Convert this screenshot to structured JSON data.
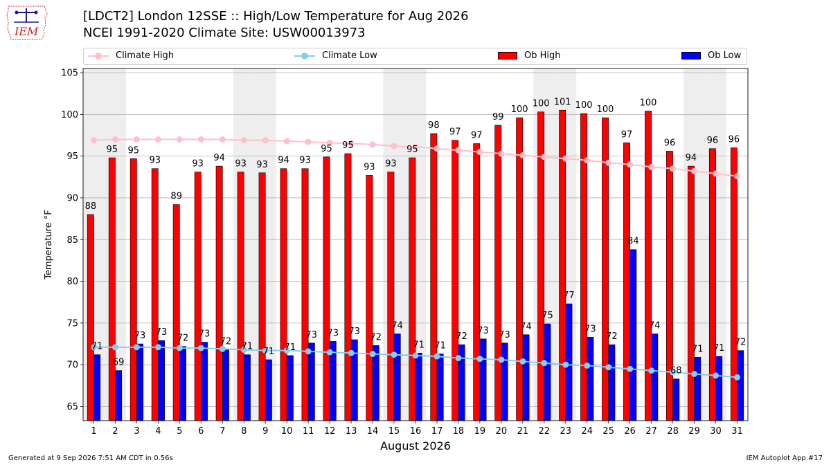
{
  "header": {
    "title_line1": "[LDCT2] London 12SSE :: High/Low Temperature for Aug 2026",
    "title_line2": "NCEI 1991-2020 Climate Site: USW00013973",
    "logo_text": "IEM"
  },
  "legend": {
    "climate_high": "Climate High",
    "climate_low": "Climate Low",
    "ob_high": "Ob High",
    "ob_low": "Ob Low"
  },
  "colors": {
    "ob_high": "#ff0000",
    "ob_low": "#0000ff",
    "climate_high": "#ffc0cb",
    "climate_low": "#87ceeb",
    "weekend_shade": "#eeeeee",
    "grid": "#b0b0b0"
  },
  "footer": {
    "left": "Generated at 9 Sep 2026 7:51 AM CDT in 0.56s",
    "right": "IEM Autoplot App #17"
  },
  "chart_data": {
    "type": "bar",
    "xlabel": "August 2026",
    "ylabel": "Temperature °F",
    "ylim": [
      63.3,
      105.5
    ],
    "yticks": [
      65,
      70,
      75,
      80,
      85,
      90,
      95,
      100,
      105
    ],
    "grid": true,
    "legend_position": "top",
    "x": [
      1,
      2,
      3,
      4,
      5,
      6,
      7,
      8,
      9,
      10,
      11,
      12,
      13,
      14,
      15,
      16,
      17,
      18,
      19,
      20,
      21,
      22,
      23,
      24,
      25,
      26,
      27,
      28,
      29,
      30,
      31
    ],
    "shaded_days": [
      1,
      2,
      8,
      9,
      15,
      16,
      22,
      23,
      29,
      30
    ],
    "series": [
      {
        "name": "Ob High",
        "kind": "bar",
        "values": [
          88,
          95,
          95,
          93,
          89,
          93,
          94,
          93,
          93,
          94,
          93,
          95,
          95,
          93,
          93,
          95,
          98,
          97,
          97,
          99,
          100,
          100,
          101,
          100,
          100,
          97,
          100,
          96,
          94,
          96,
          96
        ],
        "plotted": [
          88.0,
          94.8,
          94.7,
          93.5,
          89.2,
          93.1,
          93.8,
          93.1,
          93.0,
          93.5,
          93.5,
          94.9,
          95.3,
          92.7,
          93.1,
          94.8,
          97.7,
          96.9,
          96.5,
          98.7,
          99.6,
          100.3,
          100.5,
          100.1,
          99.6,
          96.6,
          100.4,
          95.6,
          93.8,
          95.9,
          96.0
        ]
      },
      {
        "name": "Ob Low",
        "kind": "bar",
        "values": [
          71,
          69,
          73,
          73,
          72,
          73,
          72,
          71,
          71,
          71,
          73,
          73,
          73,
          72,
          74,
          71,
          71,
          72,
          73,
          73,
          74,
          75,
          77,
          73,
          72,
          84,
          74,
          68,
          71,
          71,
          72
        ],
        "plotted": [
          71.2,
          69.3,
          72.5,
          72.9,
          72.2,
          72.7,
          71.8,
          71.2,
          70.6,
          71.1,
          72.6,
          72.8,
          73.0,
          72.3,
          73.7,
          71.4,
          71.3,
          72.4,
          73.1,
          72.6,
          73.6,
          74.9,
          77.3,
          73.3,
          72.4,
          83.8,
          73.7,
          68.3,
          70.9,
          71.0,
          71.7
        ]
      },
      {
        "name": "Climate High",
        "kind": "line",
        "values": [
          96.9,
          97.0,
          97.0,
          97.0,
          97.0,
          97.0,
          97.0,
          96.9,
          96.9,
          96.8,
          96.7,
          96.6,
          96.5,
          96.4,
          96.2,
          96.1,
          95.9,
          95.7,
          95.5,
          95.3,
          95.1,
          94.9,
          94.7,
          94.5,
          94.2,
          94.0,
          93.7,
          93.5,
          93.2,
          92.9,
          92.6
        ]
      },
      {
        "name": "Climate Low",
        "kind": "line",
        "values": [
          72.1,
          72.1,
          72.1,
          72.1,
          72.0,
          72.0,
          71.9,
          71.8,
          71.7,
          71.7,
          71.6,
          71.5,
          71.4,
          71.3,
          71.2,
          71.1,
          71.0,
          70.8,
          70.7,
          70.6,
          70.4,
          70.2,
          70.0,
          69.9,
          69.7,
          69.5,
          69.3,
          69.1,
          68.9,
          68.7,
          68.5
        ]
      }
    ]
  }
}
